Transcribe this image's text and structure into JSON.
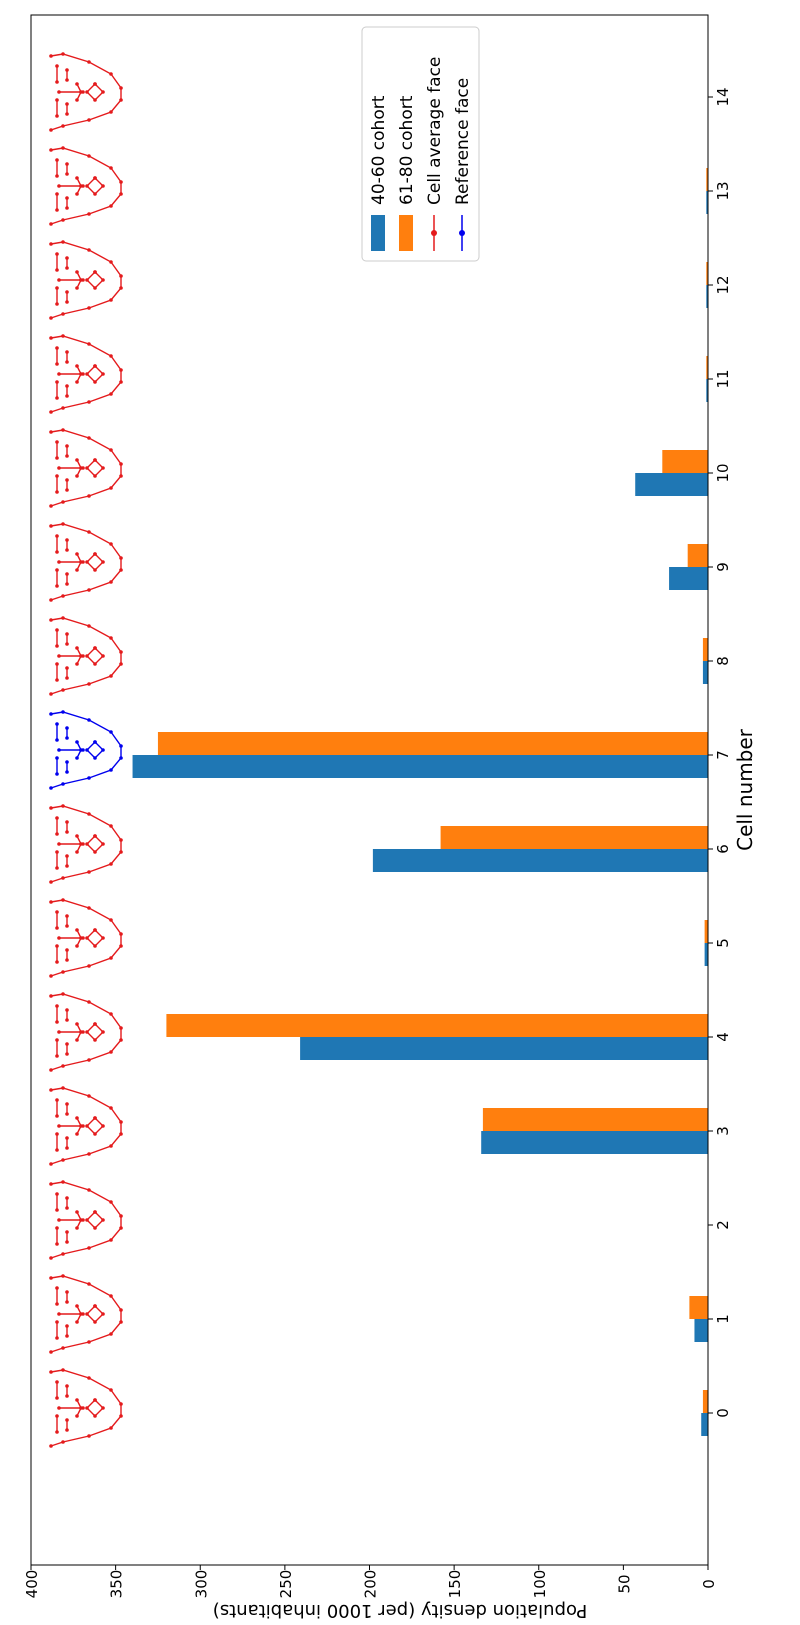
{
  "chart_data": {
    "type": "bar",
    "orientation": "rotated-90-clockwise",
    "xlabel": "Cell number",
    "ylabel": "Population density (per 1000 inhabitants)",
    "categories": [
      "0",
      "1",
      "2",
      "3",
      "4",
      "5",
      "6",
      "7",
      "8",
      "9",
      "10",
      "11",
      "12",
      "13",
      "14"
    ],
    "series": [
      {
        "name": "40-60 cohort",
        "color": "#1f77b4",
        "values": [
          4,
          8,
          0,
          134,
          241,
          2,
          198,
          340,
          3,
          23,
          43,
          1,
          1,
          1,
          0
        ]
      },
      {
        "name": "61-80 cohort",
        "color": "#ff7f0e",
        "values": [
          3,
          11,
          0,
          133,
          320,
          2,
          158,
          325,
          3,
          12,
          27,
          1,
          1,
          1,
          0
        ]
      }
    ],
    "face_markers": {
      "series": [
        {
          "name": "Cell average face",
          "color": "#e41a1c"
        },
        {
          "name": "Reference face",
          "color": "#0000ee"
        }
      ],
      "reference_cell": 7
    },
    "ylim": [
      0,
      400
    ],
    "yticks": [
      0,
      50,
      100,
      150,
      200,
      250,
      300,
      350,
      400
    ],
    "legend_position": "top-right"
  }
}
